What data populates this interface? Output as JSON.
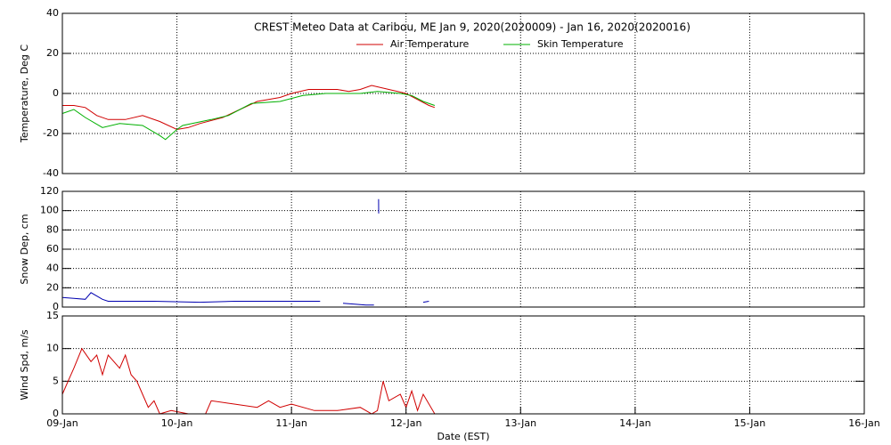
{
  "chart_data": [
    {
      "type": "line",
      "title": "CREST Meteo Data at Caribou, ME   Jan  9, 2020(2020009) - Jan 16, 2020(2020016)",
      "ylabel": "Temperature, Deg C",
      "ylim": [
        -40,
        40
      ],
      "yticks": [
        -40,
        -20,
        0,
        20,
        40
      ],
      "grid": true,
      "series": [
        {
          "name": "Air Temperature",
          "color": "#d00000",
          "x": [
            0,
            0.1,
            0.2,
            0.3,
            0.4,
            0.55,
            0.7,
            0.85,
            1.0,
            1.1,
            1.2,
            1.4,
            1.55,
            1.7,
            1.9,
            2.0,
            2.15,
            2.4,
            2.5,
            2.6,
            2.7,
            2.85,
            3.0,
            3.1,
            3.2,
            3.25
          ],
          "values": [
            -6,
            -6,
            -7,
            -11,
            -13,
            -13,
            -11,
            -14,
            -18,
            -17,
            -15,
            -12,
            -8,
            -4,
            -2,
            0,
            2,
            2,
            1,
            2,
            4,
            2,
            0,
            -3,
            -6,
            -7
          ]
        },
        {
          "name": "Skin Temperature",
          "color": "#00b000",
          "x": [
            0,
            0.1,
            0.2,
            0.35,
            0.5,
            0.7,
            0.85,
            0.9,
            1.0,
            1.05,
            1.3,
            1.45,
            1.65,
            1.9,
            2.1,
            2.3,
            2.6,
            2.75,
            2.95,
            3.05,
            3.15,
            3.25
          ],
          "values": [
            -10,
            -8,
            -12,
            -17,
            -15,
            -16,
            -21,
            -23,
            -18,
            -16,
            -13,
            -11,
            -5,
            -4,
            -1,
            0,
            0,
            1,
            0,
            -1,
            -4,
            -6
          ]
        }
      ]
    },
    {
      "type": "line",
      "ylabel": "Snow Dep, cm",
      "ylim": [
        0,
        120
      ],
      "yticks": [
        0,
        20,
        40,
        60,
        80,
        100,
        120
      ],
      "grid": true,
      "series": [
        {
          "color": "#0000b0",
          "x": [
            0,
            0.1,
            0.2,
            0.25,
            0.35,
            0.4,
            0.8,
            1.2,
            1.5,
            1.9,
            2.25,
            2.26,
            2.45,
            2.55,
            2.65,
            2.72,
            2.73,
            2.76,
            2.761,
            2.762,
            2.85,
            2.86,
            3.15,
            3.2
          ],
          "values": [
            10,
            9,
            8,
            15,
            8,
            6,
            6,
            5,
            6,
            6,
            6,
            null,
            4,
            3,
            2,
            2,
            null,
            112,
            97,
            null,
            4,
            null,
            5,
            6
          ]
        }
      ]
    },
    {
      "type": "line",
      "ylabel": "Wind Spd, m/s",
      "xlabel": "Date (EST)",
      "xlim": [
        0,
        7
      ],
      "xticks": [
        {
          "value": 0,
          "label": "09-Jan"
        },
        {
          "value": 1,
          "label": "10-Jan"
        },
        {
          "value": 2,
          "label": "11-Jan"
        },
        {
          "value": 3,
          "label": "12-Jan"
        },
        {
          "value": 4,
          "label": "13-Jan"
        },
        {
          "value": 5,
          "label": "14-Jan"
        },
        {
          "value": 6,
          "label": "15-Jan"
        },
        {
          "value": 7,
          "label": "16-Jan"
        }
      ],
      "ylim": [
        0,
        15
      ],
      "yticks": [
        0,
        5,
        10,
        15
      ],
      "grid": true,
      "series": [
        {
          "color": "#d00000",
          "x": [
            0,
            0.05,
            0.1,
            0.17,
            0.25,
            0.3,
            0.35,
            0.4,
            0.5,
            0.55,
            0.6,
            0.65,
            0.7,
            0.75,
            0.8,
            0.85,
            0.95,
            1.1,
            1.25,
            1.3,
            1.5,
            1.7,
            1.8,
            1.9,
            2.0,
            2.2,
            2.4,
            2.6,
            2.7,
            2.75,
            2.8,
            2.85,
            2.95,
            3.0,
            3.05,
            3.1,
            3.15,
            3.25
          ],
          "values": [
            3,
            5,
            7,
            10,
            8,
            9,
            6,
            9,
            7,
            9,
            6,
            5,
            3,
            1,
            2,
            0,
            0.5,
            0,
            0,
            2,
            1.5,
            1,
            2,
            1,
            1.5,
            0.5,
            0.5,
            1,
            0,
            0.5,
            5,
            2,
            3,
            1,
            3.5,
            0.5,
            3,
            0
          ]
        }
      ]
    }
  ]
}
